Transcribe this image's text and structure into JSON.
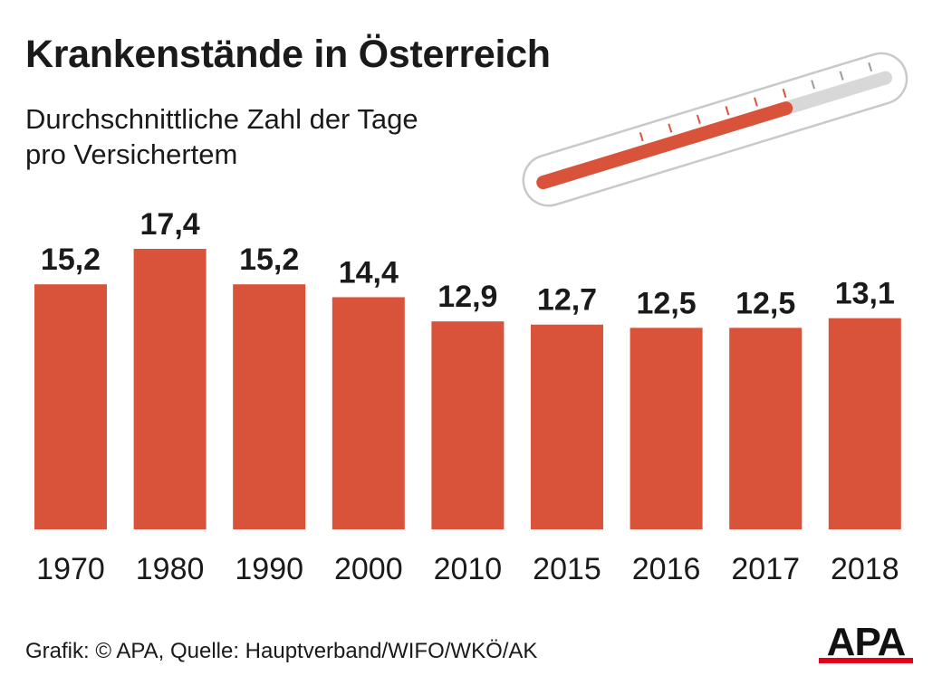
{
  "header": {
    "title": "Krankenstände in Österreich",
    "subtitle_line1": "Durchschnittliche Zahl der Tage",
    "subtitle_line2": "pro Versichertem"
  },
  "footer": {
    "source": "Grafik: © APA, Quelle: Hauptverband/WIFO/WKÖ/AK"
  },
  "logo": {
    "text": "APA",
    "icon": "apa-logo-icon"
  },
  "decoration": {
    "icon": "thermometer-icon",
    "fill_fraction": 0.72
  },
  "colors": {
    "bar": "#d9533a",
    "text": "#1a1a1a",
    "thermo_fill": "#d9533a",
    "thermo_track": "#d8d8d8",
    "logo_red": "#e3001b"
  },
  "chart_data": {
    "type": "bar",
    "title": "Krankenstände in Österreich",
    "subtitle": "Durchschnittliche Zahl der Tage pro Versichertem",
    "categories": [
      "1970",
      "1980",
      "1990",
      "2000",
      "2010",
      "2015",
      "2016",
      "2017",
      "2018"
    ],
    "values": [
      15.2,
      17.4,
      15.2,
      14.4,
      12.9,
      12.7,
      12.5,
      12.5,
      13.1
    ],
    "value_labels": [
      "15,2",
      "17,4",
      "15,2",
      "14,4",
      "12,9",
      "12,7",
      "12,5",
      "12,5",
      "13,1"
    ],
    "xlabel": "",
    "ylabel": "",
    "ylim": [
      0,
      17.4
    ],
    "grid": false,
    "legend": "none"
  }
}
